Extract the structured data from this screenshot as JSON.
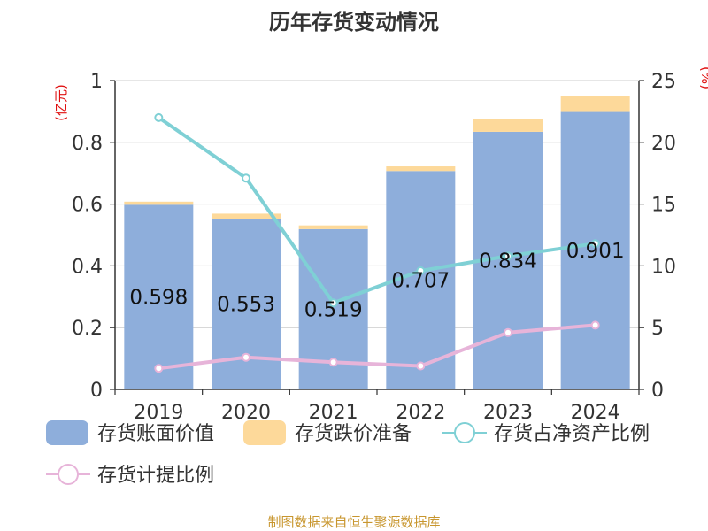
{
  "chart_data": {
    "type": "bar",
    "title": "历年存货变动情况",
    "y_left_unit": "(亿元)",
    "y_right_unit": "(%)",
    "categories": [
      "2019",
      "2020",
      "2021",
      "2022",
      "2023",
      "2024"
    ],
    "ylim_left": [
      0,
      1
    ],
    "yticks_left": [
      "0",
      "0.2",
      "0.4",
      "0.6",
      "0.8",
      "1"
    ],
    "ylim_right": [
      0,
      25
    ],
    "yticks_right": [
      "0",
      "5",
      "10",
      "15",
      "20",
      "25"
    ],
    "grid": true,
    "legend_position": "bottom",
    "series": [
      {
        "name": "存货账面价值",
        "kind": "bar-stack",
        "axis": "left",
        "color": "#8eaedb",
        "values": [
          0.598,
          0.553,
          0.519,
          0.707,
          0.834,
          0.901
        ],
        "data_labels": [
          "0.598",
          "0.553",
          "0.519",
          "0.707",
          "0.834",
          "0.901"
        ]
      },
      {
        "name": "存货跌价准备",
        "kind": "bar-stack",
        "axis": "left",
        "color": "#fdd99a",
        "values": [
          0.01,
          0.016,
          0.012,
          0.015,
          0.04,
          0.05
        ]
      },
      {
        "name": "存货占净资产比例",
        "kind": "line",
        "axis": "right",
        "color": "#7fd0d5",
        "values": [
          22.0,
          17.1,
          7.0,
          9.6,
          10.8,
          11.8
        ]
      },
      {
        "name": "存货计提比例",
        "kind": "line",
        "axis": "right",
        "color": "#e7b4d9",
        "values": [
          1.7,
          2.6,
          2.2,
          1.9,
          4.6,
          5.2
        ]
      }
    ]
  },
  "footer": {
    "source": "制图数据来自恒生聚源数据库"
  }
}
